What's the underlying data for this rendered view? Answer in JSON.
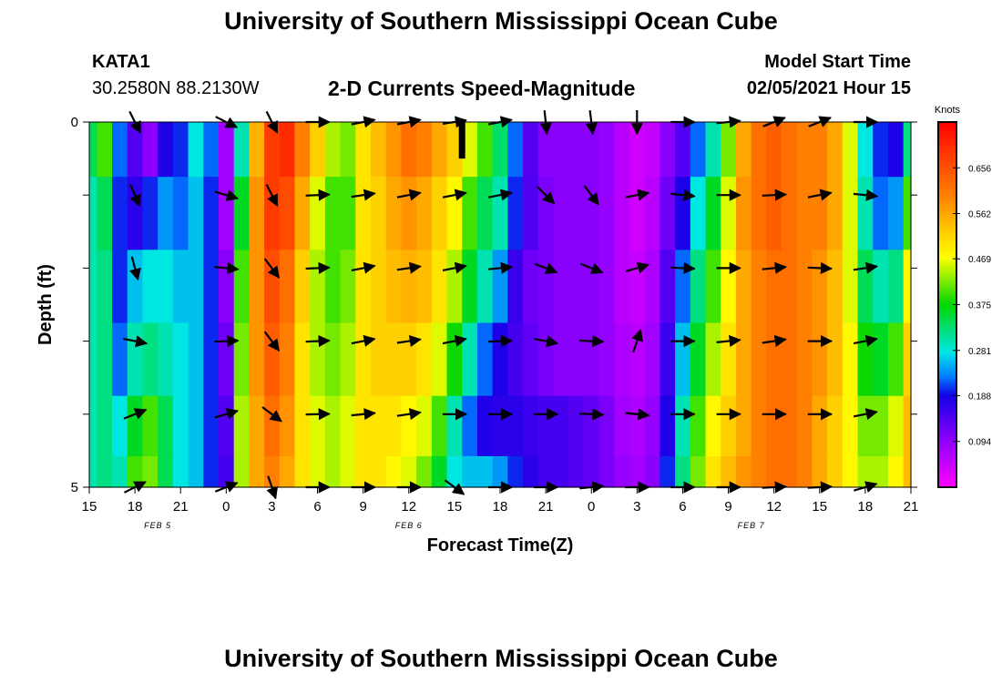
{
  "page": {
    "title_top": "University of Southern Mississippi Ocean Cube",
    "title_bottom": "University of Southern Mississippi Ocean Cube",
    "station": "KATA1",
    "coordinates": "30.2580N 88.2130W",
    "subtitle": "2-D Currents Speed-Magnitude",
    "model_start_label": "Model Start Time",
    "model_start_value": "02/05/2021 Hour 15"
  },
  "chart_data": {
    "type": "heatmap",
    "title": "2-D Currents Speed-Magnitude",
    "xlabel": "Forecast Time(Z)",
    "ylabel": "Depth (ft)",
    "x_tick_labels": [
      "15",
      "18",
      "21",
      "0",
      "3",
      "6",
      "9",
      "12",
      "15",
      "18",
      "21",
      "0",
      "3",
      "6",
      "9",
      "12",
      "15",
      "18",
      "21"
    ],
    "date_labels": [
      {
        "text": "FEB 5",
        "tick_index": 1.5
      },
      {
        "text": "FEB 6",
        "tick_index": 7
      },
      {
        "text": "FEB 7",
        "tick_index": 14.5
      }
    ],
    "x_range_hours": [
      0,
      54
    ],
    "y_tick_labels": [
      {
        "value": 0,
        "label": "0"
      },
      {
        "value": 1,
        "label": ""
      },
      {
        "value": 2,
        "label": ""
      },
      {
        "value": 3,
        "label": ""
      },
      {
        "value": 4,
        "label": ""
      },
      {
        "value": 5,
        "label": "5"
      }
    ],
    "ylim": [
      0,
      5
    ],
    "colorbar": {
      "title": "Knots",
      "vmin": 0,
      "vmax": 0.75,
      "ticks": [
        0.094,
        0.188,
        0.281,
        0.375,
        0.469,
        0.562,
        0.656
      ],
      "tick_labels": [
        "0.094",
        "0.188",
        "0.281",
        "0.375",
        "0.469",
        "0.562",
        "0.656"
      ]
    },
    "speed_knots": {
      "hours": [
        0,
        1,
        2,
        3,
        4,
        5,
        6,
        7,
        8,
        9,
        10,
        11,
        12,
        13,
        14,
        15,
        16,
        17,
        18,
        19,
        20,
        21,
        22,
        23,
        24,
        25,
        26,
        27,
        28,
        29,
        30,
        31,
        32,
        33,
        34,
        35,
        36,
        37,
        38,
        39,
        40,
        41,
        42,
        43,
        44,
        45,
        46,
        47,
        48,
        49,
        50,
        51,
        52,
        53,
        54
      ],
      "depths": [
        0.25,
        1.25,
        2.25,
        3.25,
        4.25,
        4.9
      ],
      "values": [
        [
          0.34,
          0.4,
          0.22,
          0.14,
          0.1,
          0.18,
          0.2,
          0.28,
          0.22,
          0.08,
          0.3,
          0.55,
          0.68,
          0.7,
          0.6,
          0.52,
          0.44,
          0.42,
          0.5,
          0.54,
          0.58,
          0.62,
          0.6,
          0.56,
          0.52,
          0.46,
          0.4,
          0.33,
          0.22,
          0.14,
          0.1,
          0.1,
          0.1,
          0.1,
          0.09,
          0.06,
          0.04,
          0.05,
          0.1,
          0.14,
          0.22,
          0.3,
          0.42,
          0.56,
          0.62,
          0.64,
          0.62,
          0.6,
          0.6,
          0.56,
          0.46,
          0.28,
          0.2,
          0.18,
          0.32
        ],
        [
          0.3,
          0.34,
          0.2,
          0.17,
          0.2,
          0.24,
          0.22,
          0.26,
          0.2,
          0.08,
          0.36,
          0.58,
          0.68,
          0.66,
          0.56,
          0.46,
          0.4,
          0.4,
          0.5,
          0.52,
          0.56,
          0.58,
          0.56,
          0.52,
          0.48,
          0.4,
          0.34,
          0.3,
          0.2,
          0.14,
          0.11,
          0.1,
          0.1,
          0.1,
          0.09,
          0.06,
          0.04,
          0.06,
          0.12,
          0.18,
          0.28,
          0.36,
          0.46,
          0.58,
          0.62,
          0.64,
          0.62,
          0.6,
          0.6,
          0.56,
          0.46,
          0.3,
          0.22,
          0.24,
          0.4
        ],
        [
          0.3,
          0.32,
          0.2,
          0.26,
          0.28,
          0.28,
          0.26,
          0.26,
          0.2,
          0.1,
          0.4,
          0.58,
          0.66,
          0.62,
          0.52,
          0.44,
          0.4,
          0.42,
          0.5,
          0.52,
          0.54,
          0.55,
          0.54,
          0.5,
          0.44,
          0.36,
          0.3,
          0.24,
          0.16,
          0.12,
          0.11,
          0.1,
          0.1,
          0.1,
          0.09,
          0.06,
          0.05,
          0.07,
          0.14,
          0.22,
          0.32,
          0.4,
          0.48,
          0.56,
          0.6,
          0.62,
          0.62,
          0.6,
          0.58,
          0.54,
          0.46,
          0.34,
          0.3,
          0.32,
          0.48
        ],
        [
          0.3,
          0.32,
          0.22,
          0.3,
          0.32,
          0.3,
          0.28,
          0.26,
          0.2,
          0.12,
          0.42,
          0.58,
          0.64,
          0.6,
          0.5,
          0.44,
          0.42,
          0.44,
          0.5,
          0.52,
          0.52,
          0.52,
          0.5,
          0.46,
          0.38,
          0.3,
          0.22,
          0.18,
          0.15,
          0.13,
          0.11,
          0.1,
          0.1,
          0.1,
          0.09,
          0.07,
          0.06,
          0.08,
          0.16,
          0.26,
          0.36,
          0.44,
          0.5,
          0.56,
          0.6,
          0.62,
          0.62,
          0.6,
          0.58,
          0.54,
          0.48,
          0.38,
          0.36,
          0.4,
          0.52
        ],
        [
          0.3,
          0.32,
          0.28,
          0.36,
          0.4,
          0.34,
          0.28,
          0.26,
          0.2,
          0.14,
          0.44,
          0.56,
          0.62,
          0.58,
          0.5,
          0.46,
          0.44,
          0.46,
          0.5,
          0.5,
          0.5,
          0.48,
          0.46,
          0.4,
          0.3,
          0.22,
          0.18,
          0.17,
          0.17,
          0.16,
          0.15,
          0.15,
          0.14,
          0.13,
          0.11,
          0.08,
          0.07,
          0.09,
          0.18,
          0.3,
          0.4,
          0.48,
          0.52,
          0.56,
          0.6,
          0.62,
          0.62,
          0.6,
          0.56,
          0.52,
          0.48,
          0.42,
          0.42,
          0.46,
          0.54
        ],
        [
          0.3,
          0.32,
          0.3,
          0.4,
          0.42,
          0.34,
          0.28,
          0.26,
          0.2,
          0.15,
          0.44,
          0.56,
          0.6,
          0.56,
          0.5,
          0.46,
          0.44,
          0.46,
          0.5,
          0.5,
          0.48,
          0.46,
          0.42,
          0.36,
          0.28,
          0.26,
          0.26,
          0.24,
          0.2,
          0.17,
          0.15,
          0.15,
          0.14,
          0.13,
          0.11,
          0.09,
          0.08,
          0.1,
          0.2,
          0.32,
          0.42,
          0.5,
          0.54,
          0.58,
          0.6,
          0.62,
          0.62,
          0.6,
          0.56,
          0.52,
          0.48,
          0.44,
          0.44,
          0.48,
          0.54
        ]
      ]
    },
    "vectors": {
      "hours": [
        3,
        9,
        12,
        15,
        18,
        21,
        24,
        27,
        30,
        33,
        36,
        39,
        42,
        45,
        48,
        51
      ],
      "depths": [
        0,
        1,
        2,
        3,
        4,
        5
      ],
      "components_u_v": [
        [
          [
            0.45,
            -0.9
          ],
          [
            1.0,
            -0.5
          ],
          [
            0.4,
            -0.8
          ],
          [
            1.0,
            0.0
          ],
          [
            1.0,
            0.2
          ],
          [
            1.0,
            0.2
          ],
          [
            1.0,
            0.15
          ],
          [
            1.0,
            0.2
          ],
          [
            0.1,
            -0.9
          ],
          [
            0.1,
            -0.8
          ],
          [
            0.0,
            -1.0
          ],
          [
            1.0,
            0.0
          ],
          [
            1.0,
            0.1
          ],
          [
            1.0,
            0.4
          ],
          [
            1.0,
            0.4
          ],
          [
            1.0,
            0.0
          ]
        ],
        [
          [
            0.4,
            -0.9
          ],
          [
            1.0,
            -0.3
          ],
          [
            0.4,
            -0.8
          ],
          [
            1.0,
            0.05
          ],
          [
            1.0,
            0.15
          ],
          [
            1.0,
            0.2
          ],
          [
            1.0,
            0.2
          ],
          [
            1.0,
            0.2
          ],
          [
            0.7,
            -0.7
          ],
          [
            0.6,
            -0.8
          ],
          [
            1.0,
            0.2
          ],
          [
            1.0,
            -0.1
          ],
          [
            1.0,
            0.0
          ],
          [
            1.0,
            0.05
          ],
          [
            1.0,
            0.2
          ],
          [
            1.0,
            -0.1
          ]
        ],
        [
          [
            0.25,
            -0.95
          ],
          [
            1.0,
            -0.1
          ],
          [
            0.6,
            -0.8
          ],
          [
            1.0,
            0.05
          ],
          [
            1.0,
            0.2
          ],
          [
            1.0,
            0.15
          ],
          [
            1.0,
            0.2
          ],
          [
            1.0,
            0.1
          ],
          [
            1.0,
            -0.4
          ],
          [
            1.0,
            -0.4
          ],
          [
            1.0,
            0.3
          ],
          [
            1.0,
            -0.05
          ],
          [
            1.0,
            0.0
          ],
          [
            1.0,
            0.1
          ],
          [
            1.0,
            -0.05
          ],
          [
            1.0,
            0.15
          ]
        ],
        [
          [
            1.0,
            -0.2
          ],
          [
            1.0,
            0.05
          ],
          [
            0.6,
            -0.8
          ],
          [
            1.0,
            0.05
          ],
          [
            1.0,
            0.2
          ],
          [
            1.0,
            0.15
          ],
          [
            1.0,
            0.2
          ],
          [
            1.0,
            0.05
          ],
          [
            1.0,
            -0.2
          ],
          [
            1.0,
            -0.05
          ],
          [
            0.3,
            0.9
          ],
          [
            1.0,
            0.0
          ],
          [
            1.0,
            0.1
          ],
          [
            1.0,
            0.15
          ],
          [
            1.0,
            0.0
          ],
          [
            1.0,
            0.2
          ]
        ],
        [
          [
            1.0,
            0.4
          ],
          [
            1.0,
            0.3
          ],
          [
            0.8,
            -0.6
          ],
          [
            1.0,
            0.02
          ],
          [
            1.0,
            0.1
          ],
          [
            1.0,
            0.15
          ],
          [
            1.0,
            0.0
          ],
          [
            1.0,
            0.0
          ],
          [
            1.0,
            0.0
          ],
          [
            1.0,
            -0.05
          ],
          [
            1.0,
            -0.1
          ],
          [
            1.0,
            0.0
          ],
          [
            1.0,
            0.0
          ],
          [
            1.0,
            0.0
          ],
          [
            1.0,
            0.0
          ],
          [
            1.0,
            0.2
          ]
        ],
        [
          [
            1.0,
            0.5
          ],
          [
            1.0,
            0.4
          ],
          [
            0.3,
            -0.9
          ],
          [
            1.0,
            0.0
          ],
          [
            1.0,
            0.0
          ],
          [
            1.0,
            0.0
          ],
          [
            0.8,
            -0.6
          ],
          [
            1.0,
            0.0
          ],
          [
            1.0,
            0.0
          ],
          [
            1.0,
            0.1
          ],
          [
            1.0,
            0.0
          ],
          [
            1.0,
            0.0
          ],
          [
            1.0,
            0.0
          ],
          [
            1.0,
            0.05
          ],
          [
            1.0,
            0.05
          ],
          [
            1.0,
            0.3
          ]
        ]
      ]
    },
    "annotations": [
      {
        "type": "bar-marker",
        "hour": 24.5,
        "depth_top": 0,
        "depth_bottom": 0.5
      }
    ]
  }
}
